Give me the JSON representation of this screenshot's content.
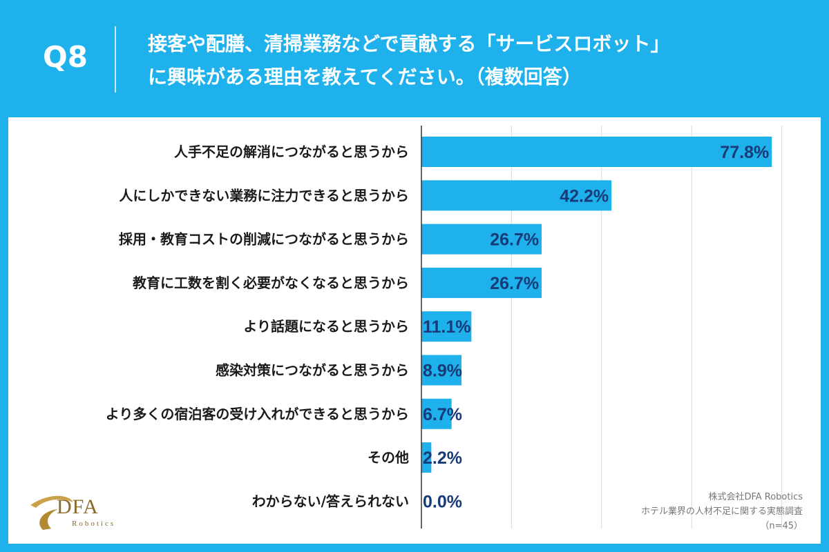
{
  "header": {
    "question_number": "Q8",
    "title_line1": "接客や配膳、清掃業務などで貢献する「サービスロボット」",
    "title_line2": "に興味がある理由を教えてください。（複数回答）"
  },
  "colors": {
    "background": "#1fb1ec",
    "bar": "#1fb1ec",
    "value_text": "#173a78",
    "panel": "#ffffff"
  },
  "chart_data": {
    "type": "bar",
    "orientation": "horizontal",
    "categories": [
      "人手不足の解消につながると思うから",
      "人にしかできない業務に注力できると思うから",
      "採用・教育コストの削減につながると思うから",
      "教育に工数を割く必要がなくなると思うから",
      "より話題になると思うから",
      "感染対策につながると思うから",
      "より多くの宿泊客の受け入れができると思うから",
      "その他",
      "わからない/答えられない"
    ],
    "values": [
      77.8,
      42.2,
      26.7,
      26.7,
      11.1,
      8.9,
      6.7,
      2.2,
      0.0
    ],
    "value_labels": [
      "77.8%",
      "42.2%",
      "26.7%",
      "26.7%",
      "11.1%",
      "8.9%",
      "6.7%",
      "2.2%",
      "0.0%"
    ],
    "xlim": [
      0,
      80
    ],
    "grid": true
  },
  "logo": {
    "name": "DFA",
    "sub": "Robotics"
  },
  "source": {
    "line1": "株式会社DFA Robotics",
    "line2": "ホテル業界の人材不足に関する実態調査",
    "line3": "（n=45）"
  }
}
